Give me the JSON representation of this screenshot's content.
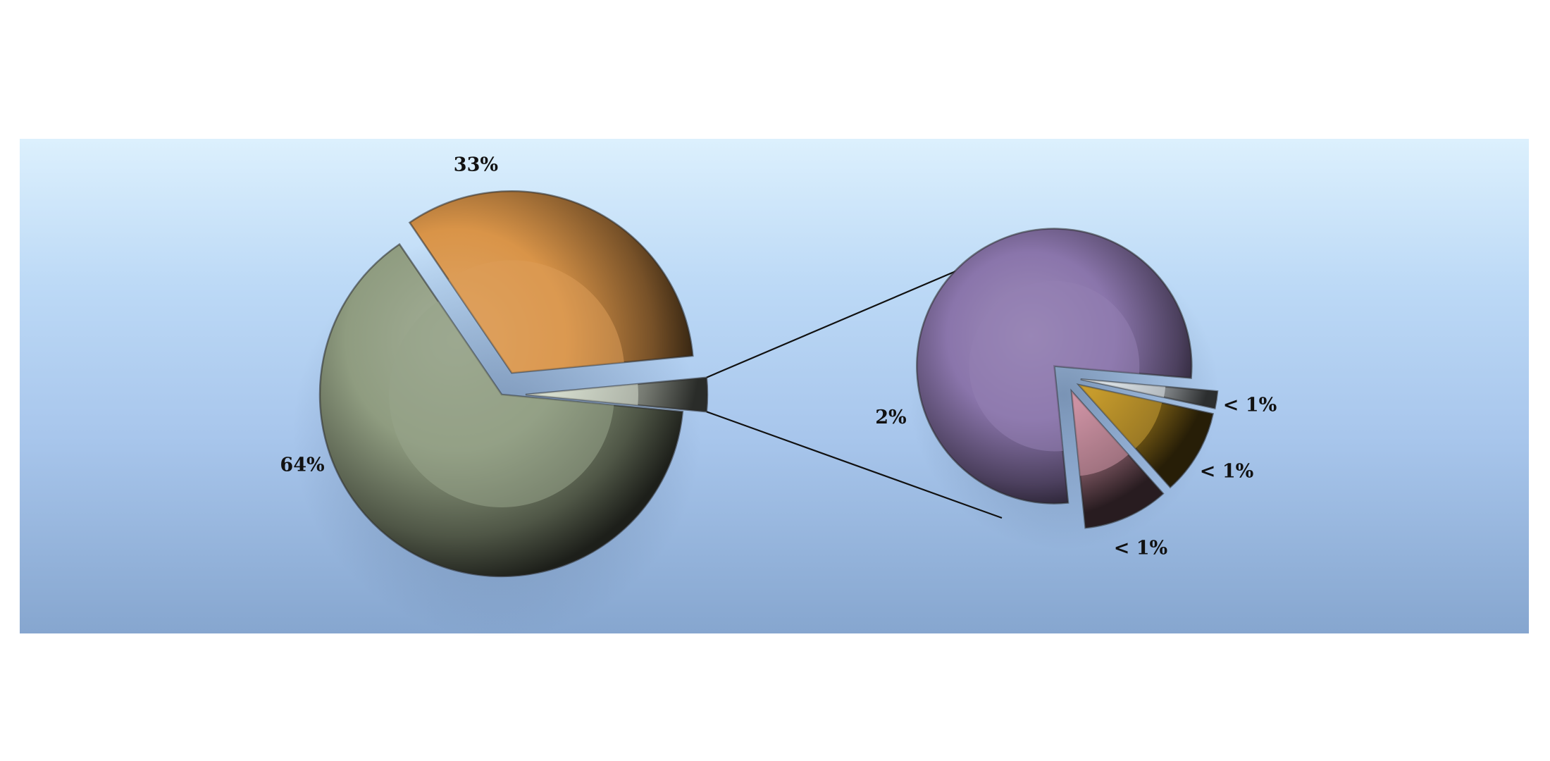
{
  "chart_data": {
    "type": "pie",
    "title": "",
    "primary_pie": {
      "slices": [
        {
          "label": "64%",
          "value": 64,
          "color": "#8f9c80",
          "exploded": false
        },
        {
          "label": "33%",
          "value": 33,
          "color": "#d99448",
          "exploded": true
        },
        {
          "label": "",
          "value": 3,
          "color": "#d3dbcb",
          "exploded": true,
          "expands_to_secondary": true
        }
      ]
    },
    "secondary_pie": {
      "slices": [
        {
          "label": "2%",
          "value": 78,
          "color": "#8a75ab"
        },
        {
          "label": "< 1%",
          "value": 2,
          "color": "#dde5ea"
        },
        {
          "label": "< 1%",
          "value": 10,
          "color": "#c49722"
        },
        {
          "label": "< 1%",
          "value": 10,
          "color": "#c98c9e"
        }
      ]
    },
    "legend": "none",
    "background": [
      "#dcf0fd",
      "#86a6cf"
    ]
  }
}
